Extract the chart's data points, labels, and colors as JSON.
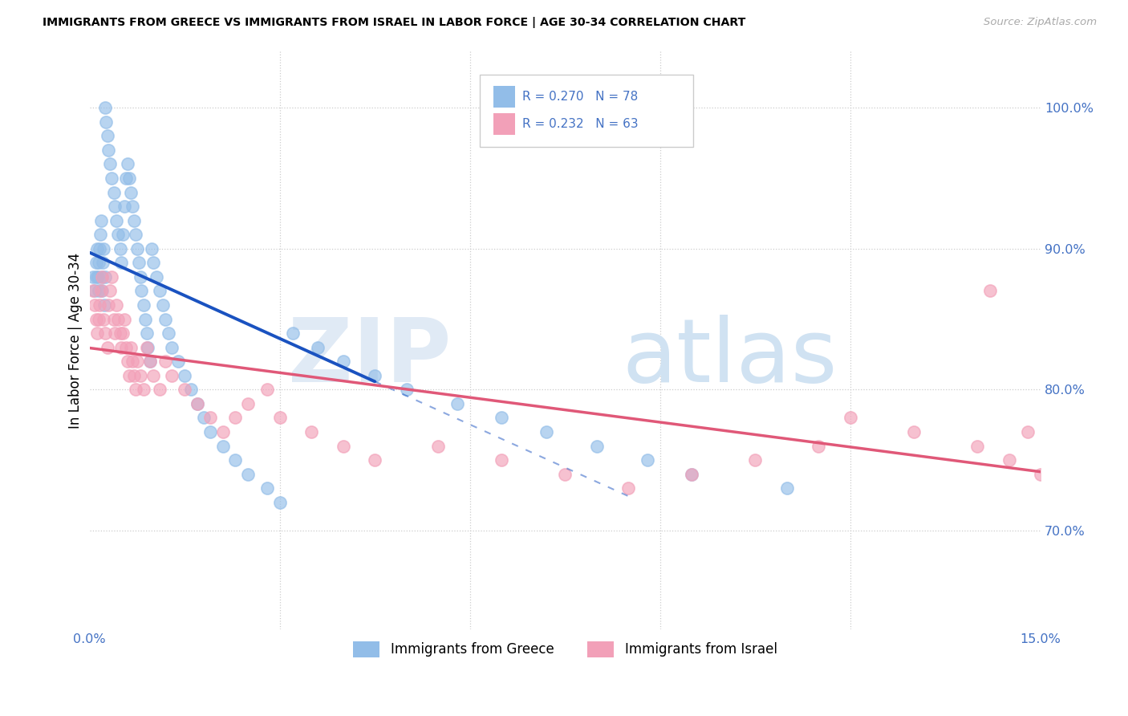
{
  "title": "IMMIGRANTS FROM GREECE VS IMMIGRANTS FROM ISRAEL IN LABOR FORCE | AGE 30-34 CORRELATION CHART",
  "source": "Source: ZipAtlas.com",
  "ylabel": "In Labor Force | Age 30-34",
  "xmin": 0.0,
  "xmax": 15.0,
  "ymin": 63.0,
  "ymax": 104.0,
  "legend_r1": "0.270",
  "legend_n1": "78",
  "legend_r2": "0.232",
  "legend_n2": "63",
  "label_greece": "Immigrants from Greece",
  "label_israel": "Immigrants from Israel",
  "color_greece": "#92BDE8",
  "color_israel": "#F2A0B8",
  "color_line_greece": "#1A52C0",
  "color_line_israel": "#E05878",
  "color_axis_right": "#4472C4",
  "color_grid": "#CCCCCC",
  "yticks": [
    70,
    80,
    90,
    100
  ],
  "greece_x": [
    0.05,
    0.08,
    0.1,
    0.11,
    0.12,
    0.13,
    0.14,
    0.15,
    0.16,
    0.17,
    0.18,
    0.19,
    0.2,
    0.21,
    0.22,
    0.23,
    0.24,
    0.25,
    0.26,
    0.28,
    0.3,
    0.32,
    0.35,
    0.38,
    0.4,
    0.42,
    0.45,
    0.48,
    0.5,
    0.52,
    0.55,
    0.58,
    0.6,
    0.62,
    0.65,
    0.68,
    0.7,
    0.72,
    0.75,
    0.78,
    0.8,
    0.82,
    0.85,
    0.88,
    0.9,
    0.92,
    0.95,
    0.98,
    1.0,
    1.05,
    1.1,
    1.15,
    1.2,
    1.25,
    1.3,
    1.4,
    1.5,
    1.6,
    1.7,
    1.8,
    1.9,
    2.1,
    2.3,
    2.5,
    2.8,
    3.0,
    3.2,
    3.6,
    4.0,
    4.5,
    5.0,
    5.8,
    6.5,
    7.2,
    8.0,
    8.8,
    9.5,
    11.0
  ],
  "greece_y": [
    88,
    87,
    88,
    89,
    90,
    88,
    87,
    89,
    90,
    91,
    92,
    87,
    88,
    89,
    90,
    86,
    88,
    100,
    99,
    98,
    97,
    96,
    95,
    94,
    93,
    92,
    91,
    90,
    89,
    91,
    93,
    95,
    96,
    95,
    94,
    93,
    92,
    91,
    90,
    89,
    88,
    87,
    86,
    85,
    84,
    83,
    82,
    90,
    89,
    88,
    87,
    86,
    85,
    84,
    83,
    82,
    81,
    80,
    79,
    78,
    77,
    76,
    75,
    74,
    73,
    72,
    84,
    83,
    82,
    81,
    80,
    79,
    78,
    77,
    76,
    75,
    74,
    73
  ],
  "israel_x": [
    0.05,
    0.08,
    0.1,
    0.12,
    0.14,
    0.16,
    0.18,
    0.2,
    0.22,
    0.25,
    0.28,
    0.3,
    0.32,
    0.35,
    0.38,
    0.4,
    0.42,
    0.45,
    0.48,
    0.5,
    0.52,
    0.55,
    0.58,
    0.6,
    0.62,
    0.65,
    0.68,
    0.7,
    0.72,
    0.75,
    0.8,
    0.85,
    0.9,
    0.95,
    1.0,
    1.1,
    1.2,
    1.3,
    1.5,
    1.7,
    1.9,
    2.1,
    2.3,
    2.5,
    2.8,
    3.0,
    3.5,
    4.0,
    4.5,
    5.5,
    6.5,
    7.5,
    8.5,
    9.5,
    10.5,
    11.5,
    12.0,
    13.0,
    14.0,
    14.5,
    14.8,
    15.0,
    14.2
  ],
  "israel_y": [
    87,
    86,
    85,
    84,
    85,
    86,
    87,
    88,
    85,
    84,
    83,
    86,
    87,
    88,
    85,
    84,
    86,
    85,
    84,
    83,
    84,
    85,
    83,
    82,
    81,
    83,
    82,
    81,
    80,
    82,
    81,
    80,
    83,
    82,
    81,
    80,
    82,
    81,
    80,
    79,
    78,
    77,
    78,
    79,
    80,
    78,
    77,
    76,
    75,
    76,
    75,
    74,
    73,
    74,
    75,
    76,
    78,
    77,
    76,
    75,
    77,
    74,
    87
  ]
}
